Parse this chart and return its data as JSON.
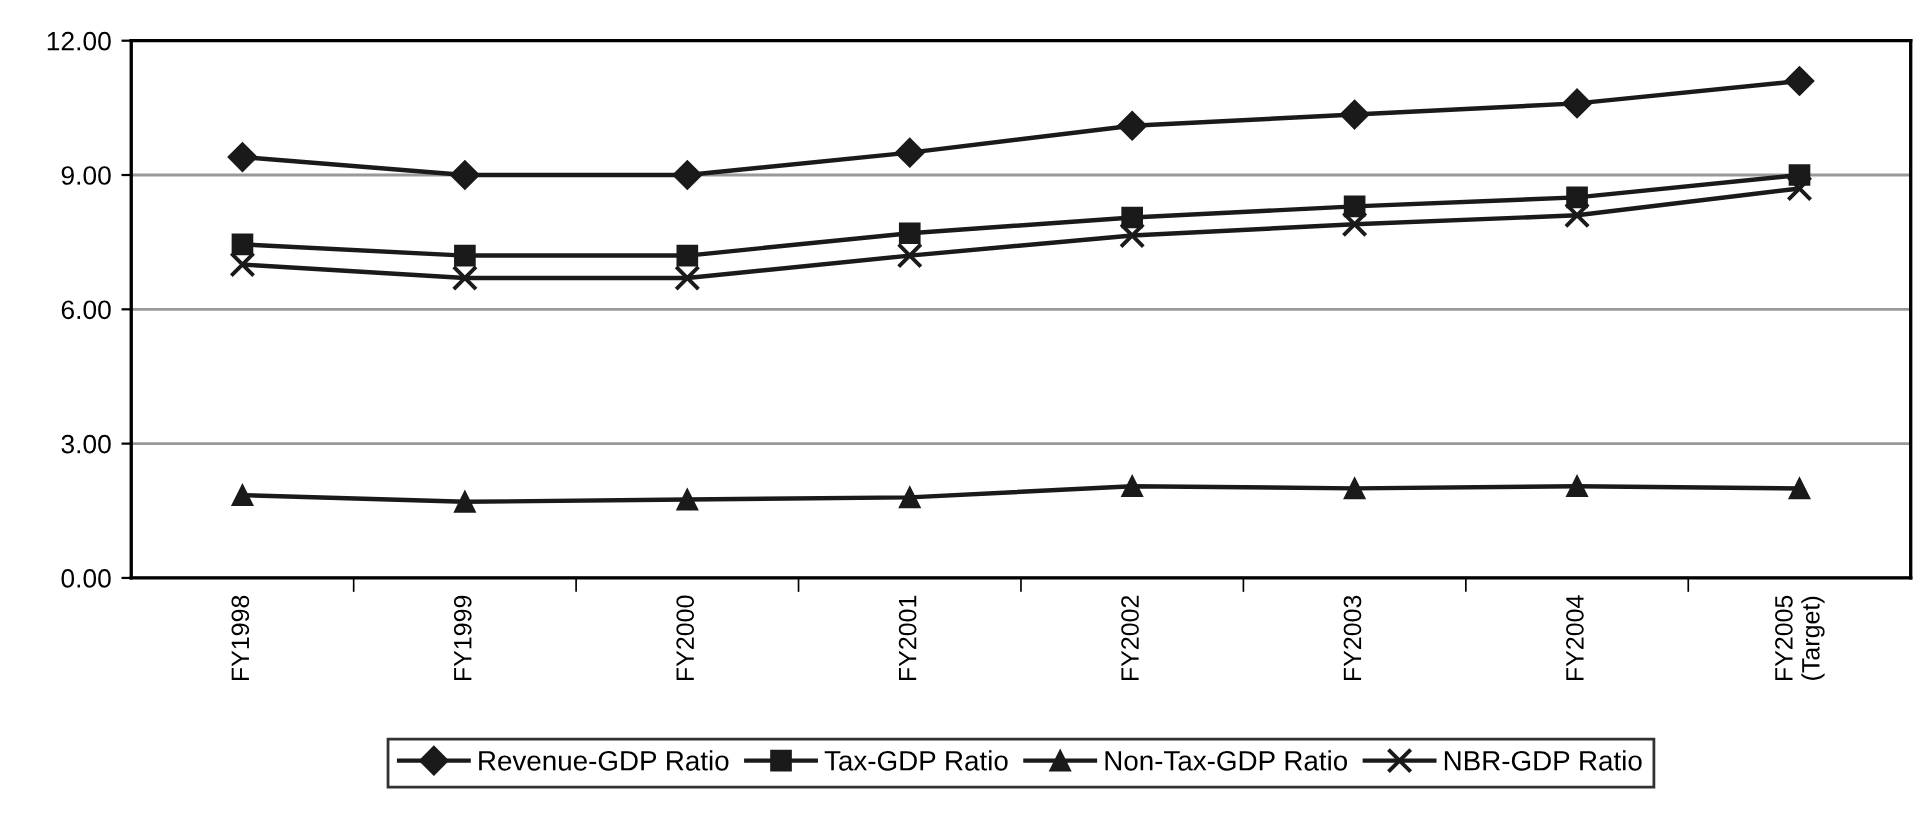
{
  "chart_data": {
    "type": "line",
    "categories": [
      "FY1998",
      "FY1999",
      "FY2000",
      "FY2001",
      "FY2002",
      "FY2003",
      "FY2004",
      "FY2005\n(Target)"
    ],
    "series": [
      {
        "name": "Revenue-GDP Ratio",
        "color": "#1a1a1a",
        "marker": "diamond",
        "values": [
          9.4,
          9.0,
          9.0,
          9.5,
          10.1,
          10.35,
          10.6,
          11.1
        ]
      },
      {
        "name": "Tax-GDP Ratio",
        "color": "#1a1a1a",
        "marker": "square",
        "values": [
          7.45,
          7.2,
          7.2,
          7.7,
          8.05,
          8.3,
          8.5,
          9.0
        ]
      },
      {
        "name": "Non-Tax-GDP Ratio",
        "color": "#1a1a1a",
        "marker": "triangle",
        "values": [
          1.85,
          1.7,
          1.75,
          1.8,
          2.05,
          2.0,
          2.05,
          2.0
        ]
      },
      {
        "name": "NBR-GDP Ratio",
        "color": "#1a1a1a",
        "marker": "cross",
        "values": [
          7.0,
          6.7,
          6.7,
          7.2,
          7.65,
          7.9,
          8.1,
          8.7
        ]
      }
    ],
    "ylim": [
      0,
      12
    ],
    "yticks": [
      {
        "value": 0,
        "label": "0.00"
      },
      {
        "value": 3,
        "label": "3.00"
      },
      {
        "value": 6,
        "label": "6.00"
      },
      {
        "value": 9,
        "label": "9.00"
      },
      {
        "value": 12,
        "label": "12.00"
      }
    ],
    "grid": "y",
    "legend": "bottom",
    "line_style": "solid"
  }
}
